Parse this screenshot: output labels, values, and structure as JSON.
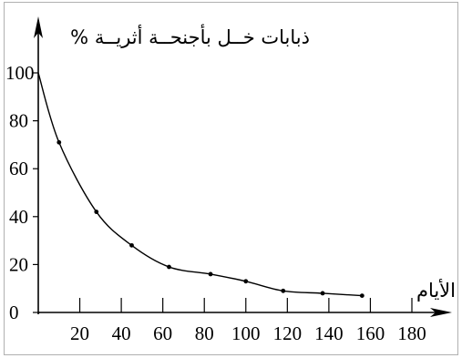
{
  "chart_data": {
    "type": "line",
    "ylabel": "% ذبابات خــل بأجنحــة أثريــة",
    "xlabel": "الأيام",
    "x_ticks": [
      20,
      40,
      60,
      80,
      100,
      120,
      140,
      160,
      180
    ],
    "y_ticks": [
      0,
      20,
      40,
      60,
      80,
      100
    ],
    "xlim": [
      0,
      180
    ],
    "ylim": [
      0,
      100
    ],
    "grid": false,
    "series": [
      {
        "points": [
          {
            "x": 0,
            "y": 100
          },
          {
            "x": 10,
            "y": 71
          },
          {
            "x": 28,
            "y": 42
          },
          {
            "x": 45,
            "y": 28
          },
          {
            "x": 63,
            "y": 19
          },
          {
            "x": 83,
            "y": 16
          },
          {
            "x": 100,
            "y": 13
          },
          {
            "x": 118,
            "y": 9
          },
          {
            "x": 137,
            "y": 8
          },
          {
            "x": 156,
            "y": 7
          }
        ]
      }
    ]
  }
}
